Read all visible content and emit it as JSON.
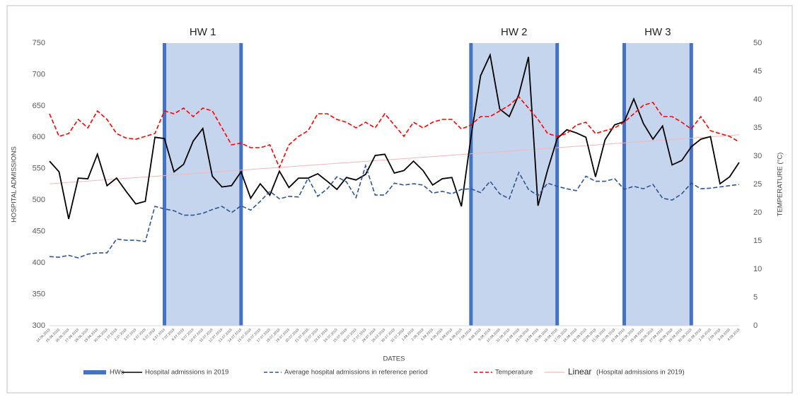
{
  "chart_data": {
    "type": "line",
    "x_label": "DATES",
    "y_label": "HOSPITAL ADMISSIONS",
    "y2_label": "TEMPERATURE (°C)",
    "categories": [
      "24.06.2019",
      "25.06.2019",
      "26.06.2019",
      "27.06.2019",
      "28.06.2019",
      "29.06.2019",
      "30.06.2019",
      "1.07.2019",
      "2.07.2019",
      "3.07.2019",
      "4.07.2019",
      "5.07.2019",
      "6.07.2019",
      "7.07.2019",
      "8.07.2019",
      "9.07.2019",
      "10.07.2019",
      "11.07.2019",
      "12.07.2019",
      "13.07.2019",
      "14.07.2019",
      "15.07.2019",
      "16.07.2019",
      "17.07.2019",
      "18.07.2019",
      "19.07.2019",
      "20.07.2019",
      "21.07.2019",
      "22.07.2019",
      "23.07.2019",
      "24.07.2019",
      "25.07.2019",
      "26.07.2019",
      "27.07.2019",
      "28.07.2019",
      "29.07.2019",
      "30.07.2019",
      "31.07.2019",
      "1.08.2019",
      "2.08.2019",
      "3.08.2019",
      "4.08.2019",
      "5.08.2019",
      "6.08.2019",
      "7.08.2019",
      "8.08.2019",
      "9.08.2019",
      "10.08.2019",
      "11.08.2019",
      "12.08.2019",
      "13.08.2019",
      "14.08.2019",
      "15.08.2019",
      "16.08.2019",
      "17.08.2019",
      "18.08.2019",
      "19.08.2019",
      "20.08.2019",
      "21.08.2019",
      "22.08.2019",
      "23.08.2019",
      "24.08.2019",
      "25.08.2019",
      "26.08.2019",
      "27.08.2019",
      "28.08.2019",
      "29.08.2019",
      "30.08.2019",
      "31.08.2019",
      "1.09.2019",
      "2.09.2019",
      "3.09.2019",
      "4.09.2019"
    ],
    "heatwaves": {
      "name": "HWs",
      "color": "#4472c4",
      "fill": "#c5d5ee",
      "bands": [
        {
          "label": "HW 1",
          "start": "6.07.2019",
          "end": "14.07.2019"
        },
        {
          "label": "HW 2",
          "start": "7.08.2019",
          "end": "16.08.2019"
        },
        {
          "label": "HW 3",
          "start": "23.08.2019",
          "end": "30.08.2019"
        }
      ]
    },
    "series": [
      {
        "name": "Hospital admissions in 2019",
        "color": "#000000",
        "dash": false,
        "values": [
          562,
          545,
          470,
          535,
          534,
          573,
          523,
          535,
          514,
          494,
          498,
          600,
          598,
          545,
          557,
          594,
          614,
          538,
          521,
          523,
          545,
          503,
          526,
          508,
          546,
          520,
          535,
          535,
          542,
          530,
          517,
          536,
          532,
          541,
          571,
          573,
          543,
          547,
          562,
          547,
          524,
          534,
          536,
          490,
          600,
          698,
          731,
          645,
          633,
          668,
          728,
          491,
          548,
          598,
          612,
          607,
          600,
          537,
          596,
          620,
          625,
          661,
          622,
          597,
          618,
          556,
          563,
          585,
          597,
          601,
          526,
          537,
          560
        ]
      },
      {
        "name": "Average hospital admissions in reference period",
        "color": "#2f5597",
        "dash": true,
        "values": [
          410,
          409,
          412,
          408,
          414,
          416,
          416,
          438,
          436,
          436,
          434,
          490,
          486,
          483,
          476,
          476,
          479,
          485,
          490,
          480,
          491,
          484,
          498,
          514,
          502,
          506,
          505,
          535,
          506,
          518,
          537,
          529,
          504,
          555,
          508,
          508,
          527,
          524,
          526,
          524,
          511,
          514,
          510,
          517,
          518,
          512,
          530,
          510,
          502,
          544,
          517,
          507,
          527,
          522,
          518,
          515,
          538,
          530,
          530,
          534,
          517,
          522,
          518,
          525,
          503,
          500,
          510,
          527,
          518,
          519,
          521,
          523,
          525
        ]
      },
      {
        "name": "Temperature",
        "color": "#ff0000",
        "dash": true,
        "axis": "y2",
        "values": [
          37.5,
          33.5,
          34,
          36.5,
          35,
          38,
          36.5,
          34,
          33.2,
          33,
          33.5,
          34,
          38,
          37.5,
          38.5,
          37,
          38.5,
          38,
          35,
          32,
          32.3,
          31.5,
          31.5,
          32,
          28,
          32,
          33.5,
          34.5,
          37.5,
          37.5,
          36.5,
          36,
          35,
          36,
          35,
          37.5,
          35.5,
          33.5,
          36,
          35,
          36,
          36.5,
          36.5,
          34.8,
          35.5,
          37,
          37,
          38,
          39,
          40.5,
          38.5,
          36.5,
          34,
          33.5,
          34,
          35.5,
          36,
          34,
          34.5,
          35,
          36,
          37.5,
          39,
          39.5,
          37,
          37,
          36,
          34.8,
          37,
          34.5,
          34,
          33.5,
          32.5
        ]
      }
    ],
    "trendline": {
      "label": "Linear",
      "name": "(Hospital admissions in 2019)",
      "color": "#f2b8b8",
      "values": [
        526,
        604
      ]
    },
    "ylim": [
      300,
      750
    ],
    "yticks": [
      300,
      350,
      400,
      450,
      500,
      550,
      600,
      650,
      700,
      750
    ],
    "y2lim": [
      0,
      50
    ],
    "y2ticks": [
      0,
      5,
      10,
      15,
      20,
      25,
      30,
      35,
      40,
      45,
      50
    ]
  }
}
